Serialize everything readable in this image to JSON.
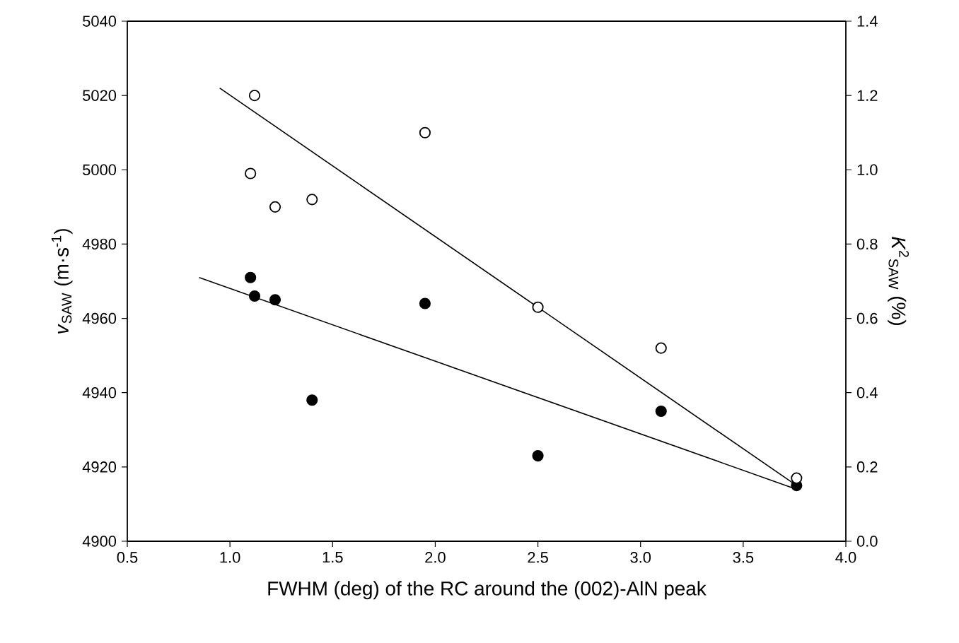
{
  "chart_data": {
    "type": "scatter",
    "xlabel": "FWHM (deg) of the RC around the (002)-AlN peak",
    "ylabel": "*v*$_{SAW}$ (m·s$^{-1}$)",
    "y2label": "*K*$^{2}$$_{SAW}$ (%)",
    "marker": "circle",
    "xlim": [
      0.5,
      4.0
    ],
    "ylim": [
      4900,
      5040
    ],
    "y2lim": [
      0.0,
      1.4
    ],
    "xticks": [
      {
        "value": 0.5,
        "label": "0.5"
      },
      {
        "value": 1.0,
        "label": "1.0"
      },
      {
        "value": 1.5,
        "label": "1.5"
      },
      {
        "value": 2.0,
        "label": "2.0"
      },
      {
        "value": 2.5,
        "label": "2.5"
      },
      {
        "value": 3.0,
        "label": "3.0"
      },
      {
        "value": 3.5,
        "label": "3.5"
      },
      {
        "value": 4.0,
        "label": "4.0"
      }
    ],
    "yticks": [
      4900,
      4920,
      4940,
      4960,
      4980,
      5000,
      5020,
      5040
    ],
    "y2ticks": [
      {
        "value": 0.0,
        "label": "0.0"
      },
      {
        "value": 0.2,
        "label": "0.2"
      },
      {
        "value": 0.4,
        "label": "0.4"
      },
      {
        "value": 0.6,
        "label": "0.6"
      },
      {
        "value": 0.8,
        "label": "0.8"
      },
      {
        "value": 1.0,
        "label": "1.0"
      },
      {
        "value": 1.2,
        "label": "1.2"
      },
      {
        "value": 1.4,
        "label": "1.4"
      }
    ],
    "series": [
      {
        "color": "#000000",
        "x": [
          1.1,
          1.12,
          1.22,
          1.4,
          1.95,
          2.5,
          3.1,
          3.76
        ],
        "values": [
          4971,
          4966,
          4965,
          4938,
          4964,
          4923,
          4935,
          4915
        ]
      },
      {
        "axis": "y2",
        "color": "#ffffff",
        "x": [
          1.12,
          1.1,
          1.22,
          1.4,
          1.95,
          2.5,
          3.1,
          3.76
        ],
        "values": [
          1.2,
          0.99,
          0.9,
          0.92,
          1.1,
          0.63,
          0.52,
          0.17
        ]
      },
      {
        "type": "line",
        "color": "#000000",
        "marker": "none",
        "x": [
          0.85,
          3.76
        ],
        "values": [
          4971,
          4914
        ]
      },
      {
        "type": "line",
        "axis": "y2",
        "color": "#000000",
        "marker": "none",
        "x": [
          0.95,
          3.76
        ],
        "values": [
          1.22,
          0.15
        ]
      }
    ]
  }
}
